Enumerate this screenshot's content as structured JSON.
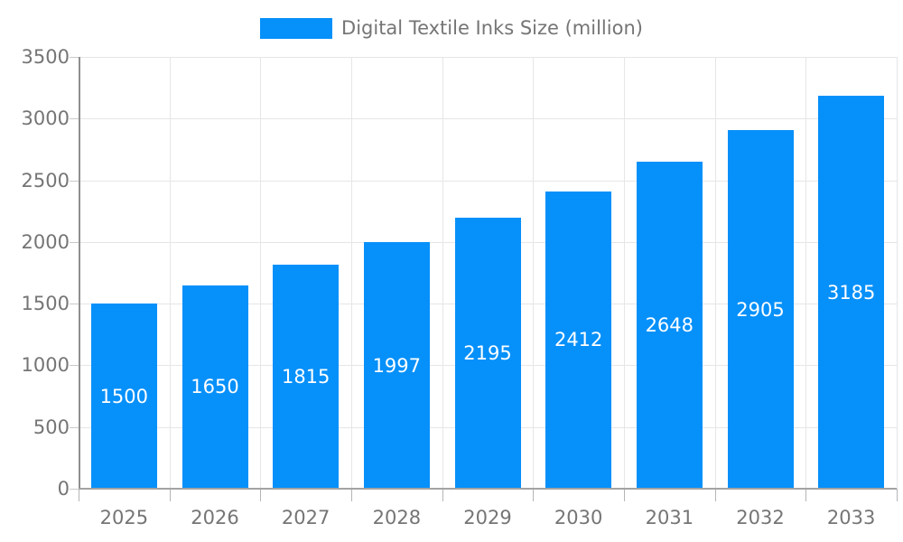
{
  "legend": {
    "label": "Digital Textile Inks Size (million)"
  },
  "chart_data": {
    "type": "bar",
    "title": "Digital Textile Inks Size (million)",
    "series_name": "Digital Textile Inks Size (million)",
    "categories": [
      "2025",
      "2026",
      "2027",
      "2028",
      "2029",
      "2030",
      "2031",
      "2032",
      "2033"
    ],
    "values": [
      1500,
      1650,
      1815,
      1997,
      2195,
      2412,
      2648,
      2905,
      3185
    ],
    "xlabel": "",
    "ylabel": "",
    "ylim": [
      0,
      3500
    ],
    "yticks": [
      0,
      500,
      1000,
      1500,
      2000,
      2500,
      3000,
      3500
    ],
    "grid": true,
    "legend_position": "top-center",
    "value_labels_position": "inside-center"
  },
  "colors": {
    "bar": "#0690FA",
    "bar_label_text": "#FFFFFF",
    "axis_text": "#757575",
    "legend_text": "#757575",
    "gridline": "#E6E6E6",
    "y_axis_line": "#8F8F8F",
    "x_axis_line": "#A3A3A3",
    "y_tick": "#C9C9C9",
    "x_tick": "#B5B5B5",
    "background": "#FFFFFF"
  }
}
